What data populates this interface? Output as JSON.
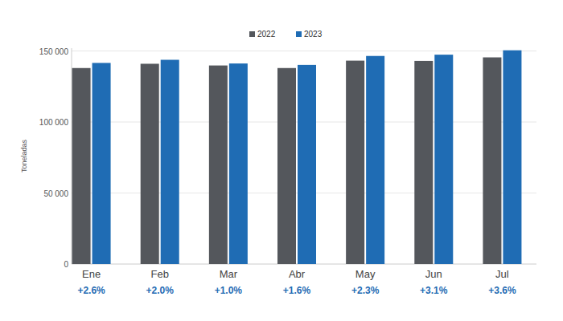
{
  "chart_data": {
    "type": "bar",
    "y_label": "Toneladas",
    "categories": [
      "Ene",
      "Feb",
      "Mar",
      "Abr",
      "May",
      "Jun",
      "Jul"
    ],
    "series": [
      {
        "name": "2022",
        "color": "#54575c",
        "values": [
          138000,
          141000,
          139800,
          138000,
          143200,
          143000,
          145500
        ]
      },
      {
        "name": "2023",
        "color": "#1f6cb4",
        "values": [
          141600,
          143800,
          141200,
          140200,
          146500,
          147400,
          150500
        ]
      }
    ],
    "annotations": [
      "+2.6%",
      "+2.0%",
      "+1.0%",
      "+1.6%",
      "+2.3%",
      "+3.1%",
      "+3.6%"
    ],
    "ylim": [
      0,
      152000
    ],
    "yticks": [
      0,
      {
        "value": 50000,
        "label": "50 000"
      },
      {
        "value": 100000,
        "label": "100 000"
      },
      {
        "value": 150000,
        "label": "150 000"
      }
    ],
    "grid": true,
    "legend": "top"
  }
}
